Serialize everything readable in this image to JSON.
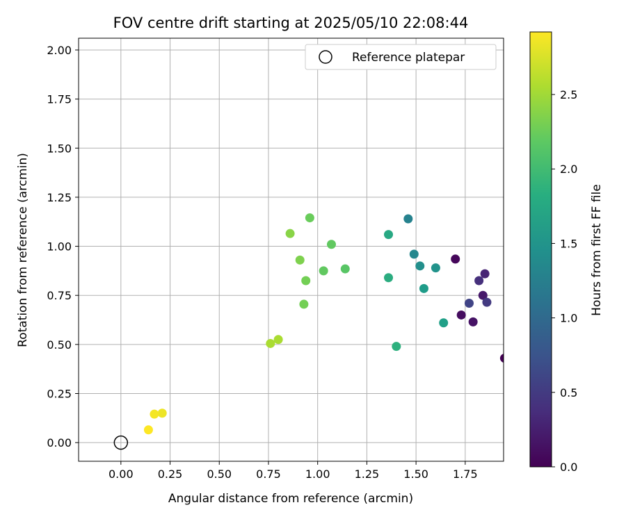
{
  "chart_data": {
    "type": "scatter",
    "title": "FOV centre drift starting at 2025/05/10 22:08:44",
    "xlabel": "Angular distance from reference (arcmin)",
    "ylabel": "Rotation from reference (arcmin)",
    "xlim": [
      -0.215,
      1.945
    ],
    "ylim": [
      -0.095,
      2.06
    ],
    "xticks": [
      "0.00",
      "0.25",
      "0.50",
      "0.75",
      "1.00",
      "1.25",
      "1.50",
      "1.75"
    ],
    "yticks": [
      "0.00",
      "0.25",
      "0.50",
      "0.75",
      "1.00",
      "1.25",
      "1.50",
      "1.75",
      "2.00"
    ],
    "grid": true,
    "legend": {
      "position": "top-right",
      "entries": [
        "Reference platepar"
      ]
    },
    "reference_point": {
      "x": 0.0,
      "y": 0.0
    },
    "colorbar": {
      "label": "Hours from first FF file",
      "range": [
        0,
        2.92
      ],
      "ticks": [
        "0.0",
        "0.5",
        "1.0",
        "1.5",
        "2.0",
        "2.5"
      ],
      "colormap": "viridis"
    },
    "points": [
      {
        "x": 1.95,
        "y": 0.43,
        "h": 0.0
      },
      {
        "x": 1.7,
        "y": 0.935,
        "h": 0.05
      },
      {
        "x": 1.73,
        "y": 0.65,
        "h": 0.1
      },
      {
        "x": 1.79,
        "y": 0.615,
        "h": 0.15
      },
      {
        "x": 1.84,
        "y": 0.75,
        "h": 0.2
      },
      {
        "x": 1.85,
        "y": 0.86,
        "h": 0.3
      },
      {
        "x": 1.82,
        "y": 0.825,
        "h": 0.4
      },
      {
        "x": 1.86,
        "y": 0.715,
        "h": 0.5
      },
      {
        "x": 1.77,
        "y": 0.71,
        "h": 0.6
      },
      {
        "x": 1.46,
        "y": 1.14,
        "h": 1.3
      },
      {
        "x": 1.49,
        "y": 0.96,
        "h": 1.35
      },
      {
        "x": 1.52,
        "y": 0.9,
        "h": 1.45
      },
      {
        "x": 1.6,
        "y": 0.89,
        "h": 1.5
      },
      {
        "x": 1.54,
        "y": 0.785,
        "h": 1.6
      },
      {
        "x": 1.64,
        "y": 0.61,
        "h": 1.65
      },
      {
        "x": 1.36,
        "y": 1.06,
        "h": 1.75
      },
      {
        "x": 1.36,
        "y": 0.84,
        "h": 1.8
      },
      {
        "x": 1.4,
        "y": 0.49,
        "h": 1.85
      },
      {
        "x": 1.14,
        "y": 0.885,
        "h": 2.15
      },
      {
        "x": 1.07,
        "y": 1.01,
        "h": 2.2
      },
      {
        "x": 1.03,
        "y": 0.875,
        "h": 2.2
      },
      {
        "x": 0.96,
        "y": 1.145,
        "h": 2.25
      },
      {
        "x": 0.94,
        "y": 0.825,
        "h": 2.3
      },
      {
        "x": 0.93,
        "y": 0.705,
        "h": 2.3
      },
      {
        "x": 0.91,
        "y": 0.93,
        "h": 2.35
      },
      {
        "x": 0.86,
        "y": 1.065,
        "h": 2.4
      },
      {
        "x": 0.8,
        "y": 0.525,
        "h": 2.55
      },
      {
        "x": 0.76,
        "y": 0.505,
        "h": 2.55
      },
      {
        "x": 0.21,
        "y": 0.15,
        "h": 2.85
      },
      {
        "x": 0.17,
        "y": 0.145,
        "h": 2.88
      },
      {
        "x": 0.14,
        "y": 0.065,
        "h": 2.92
      }
    ]
  }
}
